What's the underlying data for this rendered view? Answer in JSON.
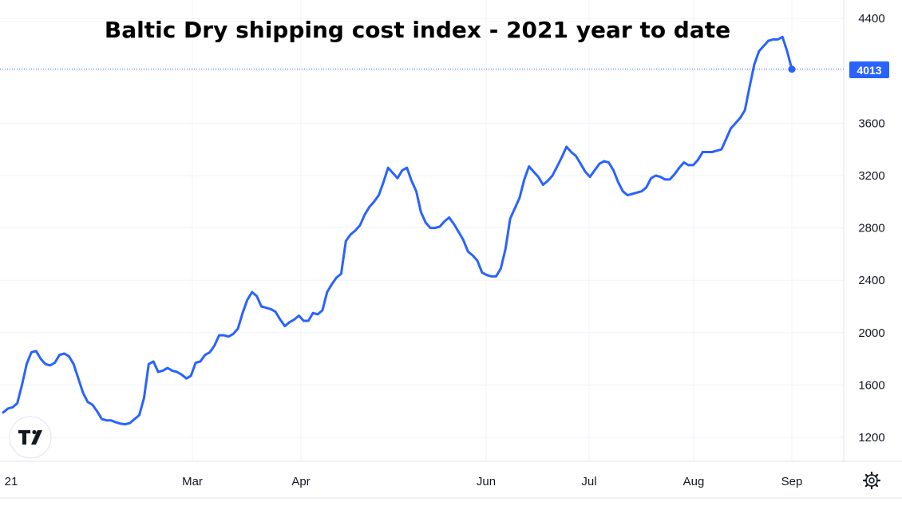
{
  "chart_data": {
    "type": "line",
    "title": "Baltic Dry shipping cost index - 2021 year to date",
    "x_tick_labels": [
      "21",
      "Mar",
      "Apr",
      "Jun",
      "Jul",
      "Aug",
      "Sep"
    ],
    "y_tick_labels": [
      "4400",
      "3600",
      "3200",
      "2800",
      "2400",
      "2000",
      "1600",
      "1200"
    ],
    "y_range": [
      1200,
      4400
    ],
    "last_value_label": "4013",
    "last_value": 4013,
    "grid": true,
    "series": [
      {
        "color": "#2962ff",
        "values": [
          1390,
          1420,
          1430,
          1460,
          1600,
          1760,
          1850,
          1860,
          1800,
          1760,
          1750,
          1770,
          1830,
          1840,
          1820,
          1760,
          1650,
          1540,
          1470,
          1450,
          1400,
          1340,
          1330,
          1330,
          1315,
          1305,
          1300,
          1310,
          1340,
          1370,
          1500,
          1760,
          1780,
          1700,
          1710,
          1730,
          1710,
          1700,
          1680,
          1650,
          1670,
          1770,
          1780,
          1830,
          1850,
          1900,
          1980,
          1980,
          1970,
          1990,
          2030,
          2150,
          2250,
          2310,
          2280,
          2200,
          2190,
          2180,
          2160,
          2100,
          2050,
          2080,
          2100,
          2130,
          2090,
          2090,
          2150,
          2140,
          2170,
          2310,
          2370,
          2420,
          2450,
          2700,
          2750,
          2780,
          2820,
          2900,
          2960,
          3000,
          3050,
          3150,
          3260,
          3220,
          3180,
          3240,
          3260,
          3160,
          3080,
          2920,
          2840,
          2800,
          2800,
          2810,
          2850,
          2880,
          2830,
          2770,
          2710,
          2620,
          2590,
          2550,
          2460,
          2440,
          2430,
          2430,
          2490,
          2640,
          2870,
          2950,
          3030,
          3170,
          3270,
          3230,
          3190,
          3130,
          3160,
          3200,
          3270,
          3340,
          3420,
          3380,
          3350,
          3290,
          3230,
          3190,
          3240,
          3290,
          3310,
          3300,
          3240,
          3150,
          3080,
          3050,
          3060,
          3070,
          3080,
          3110,
          3180,
          3200,
          3190,
          3170,
          3170,
          3210,
          3260,
          3300,
          3280,
          3280,
          3320,
          3380,
          3380,
          3380,
          3390,
          3400,
          3480,
          3560,
          3600,
          3640,
          3700,
          3880,
          4050,
          4150,
          4190,
          4230,
          4240,
          4240,
          4260,
          4150,
          4013
        ]
      }
    ]
  },
  "icons": {
    "logo": "tradingview-logo-icon",
    "settings": "gear-icon"
  }
}
